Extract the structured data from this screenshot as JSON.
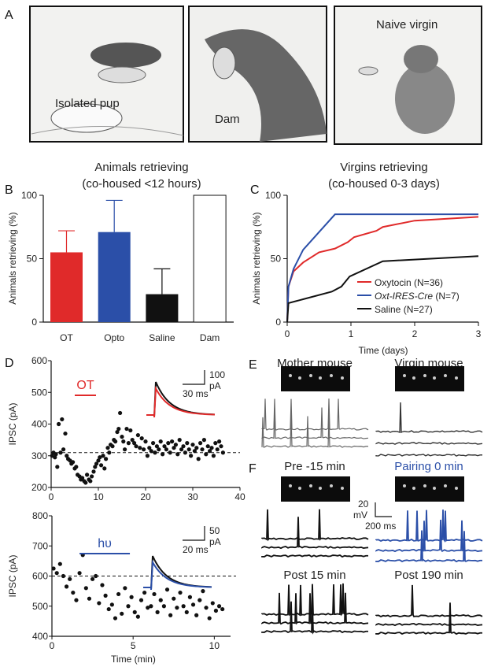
{
  "panels": {
    "A": {
      "label": "A",
      "scenes": [
        "Isolated pup",
        "Dam",
        "Naive virgin"
      ]
    },
    "B": {
      "label": "B",
      "title1": "Animals retrieving",
      "title2": "(co-housed <12 hours)"
    },
    "C": {
      "label": "C",
      "title1": "Virgins retrieving",
      "title2": "(co-housed 0-3 days)"
    },
    "D": {
      "label": "D",
      "top_marker": "OT",
      "top_scale_y": "100",
      "top_scale_y_unit": "pA",
      "top_scale_x": "30 ms",
      "bottom_marker": "hυ",
      "bottom_scale_y": "50",
      "bottom_scale_y_unit": "pA",
      "bottom_scale_x": "20 ms"
    },
    "E": {
      "label": "E",
      "left_title": "Mother mouse",
      "right_title": "Virgin mouse"
    },
    "F": {
      "label": "F",
      "titles": [
        "Pre -15 min",
        "Pairing 0 min",
        "Post 15 min",
        "Post 190 min"
      ],
      "scale_y": "20",
      "scale_y_unit": "mV",
      "scale_x": "200 ms"
    }
  },
  "colors": {
    "red": "#e02a2a",
    "blue": "#2b4fa8",
    "black": "#111111"
  },
  "chart_data": [
    {
      "type": "bar",
      "title": "Animals retrieving (co-housed <12 hours)",
      "ylabel": "Animals retrieving (%)",
      "categories": [
        "OT",
        "Opto",
        "Saline",
        "Dam"
      ],
      "values": [
        55,
        71,
        22,
        100
      ],
      "errors": [
        72,
        96,
        42,
        null
      ],
      "bar_colors": [
        "#e02a2a",
        "#2b4fa8",
        "#111111",
        "#ffffff"
      ],
      "ylim": [
        0,
        100
      ],
      "yticks": [
        "0",
        "50",
        "100"
      ]
    },
    {
      "type": "line",
      "title": "Virgins retrieving (co-housed 0-3 days)",
      "xlabel": "Time (days)",
      "ylabel": "Animals retrieving (%)",
      "xlim": [
        0,
        3
      ],
      "ylim": [
        0,
        100
      ],
      "xticks": [
        "0",
        "1",
        "2",
        "3"
      ],
      "yticks": [
        "0",
        "50",
        "100"
      ],
      "legend": "bottom-right",
      "series": [
        {
          "name": "Oxytocin",
          "name_italic": false,
          "n": "(N=36)",
          "color": "#e02a2a",
          "points": [
            [
              0,
              0
            ],
            [
              0.02,
              28
            ],
            [
              0.1,
              40
            ],
            [
              0.25,
              47
            ],
            [
              0.5,
              55
            ],
            [
              0.75,
              58
            ],
            [
              0.95,
              63
            ],
            [
              1.05,
              67
            ],
            [
              1.4,
              72
            ],
            [
              1.5,
              75
            ],
            [
              2,
              80
            ],
            [
              3,
              83
            ]
          ]
        },
        {
          "name": "Oxt-IRES-Cre",
          "name_italic": true,
          "n": "(N=7)",
          "color": "#2b4fa8",
          "points": [
            [
              0,
              0
            ],
            [
              0.02,
              28
            ],
            [
              0.1,
              42
            ],
            [
              0.25,
              57
            ],
            [
              0.75,
              85
            ],
            [
              3,
              85
            ]
          ]
        },
        {
          "name": "Saline",
          "name_italic": false,
          "n": "(N=27)",
          "color": "#111111",
          "points": [
            [
              0,
              0
            ],
            [
              0.02,
              15
            ],
            [
              0.25,
              18
            ],
            [
              0.7,
              24
            ],
            [
              0.85,
              28
            ],
            [
              0.98,
              36
            ],
            [
              1.5,
              48
            ],
            [
              3,
              52
            ]
          ]
        }
      ]
    },
    {
      "type": "scatter",
      "ylabel": "IPSC (pA)",
      "xlim": [
        0,
        40
      ],
      "ylim": [
        200,
        600
      ],
      "baseline": 310,
      "xticks": [
        "0",
        "10",
        "20",
        "30",
        "40"
      ],
      "yticks": [
        "200",
        "300",
        "400",
        "500",
        "600"
      ],
      "marker_interval": [
        5,
        9.5
      ],
      "points": [
        [
          0.2,
          300
        ],
        [
          0.5,
          310
        ],
        [
          0.8,
          295
        ],
        [
          1,
          305
        ],
        [
          1.3,
          265
        ],
        [
          1.6,
          400
        ],
        [
          2,
          310
        ],
        [
          2.3,
          415
        ],
        [
          2.6,
          320
        ],
        [
          3,
          370
        ],
        [
          3.3,
          300
        ],
        [
          3.6,
          290
        ],
        [
          4,
          285
        ],
        [
          4.3,
          275
        ],
        [
          4.6,
          280
        ],
        [
          5,
          260
        ],
        [
          5.3,
          265
        ],
        [
          5.6,
          240
        ],
        [
          6,
          235
        ],
        [
          6.3,
          225
        ],
        [
          6.6,
          230
        ],
        [
          7,
          220
        ],
        [
          7.3,
          215
        ],
        [
          7.6,
          240
        ],
        [
          8,
          225
        ],
        [
          8.3,
          220
        ],
        [
          8.6,
          235
        ],
        [
          9,
          250
        ],
        [
          9.3,
          265
        ],
        [
          9.6,
          275
        ],
        [
          10,
          285
        ],
        [
          10.3,
          295
        ],
        [
          10.6,
          270
        ],
        [
          11,
          300
        ],
        [
          11.3,
          260
        ],
        [
          11.6,
          290
        ],
        [
          12,
          325
        ],
        [
          12.3,
          310
        ],
        [
          12.6,
          335
        ],
        [
          13,
          330
        ],
        [
          13.3,
          350
        ],
        [
          13.6,
          345
        ],
        [
          14,
          375
        ],
        [
          14.3,
          385
        ],
        [
          14.6,
          435
        ],
        [
          15,
          360
        ],
        [
          15.3,
          345
        ],
        [
          15.6,
          320
        ],
        [
          16,
          385
        ],
        [
          16.4,
          340
        ],
        [
          16.8,
          380
        ],
        [
          17.2,
          350
        ],
        [
          17.6,
          340
        ],
        [
          18,
          330
        ],
        [
          18.4,
          365
        ],
        [
          18.8,
          325
        ],
        [
          19.2,
          355
        ],
        [
          19.6,
          320
        ],
        [
          20,
          345
        ],
        [
          20.4,
          300
        ],
        [
          20.8,
          325
        ],
        [
          21.2,
          315
        ],
        [
          21.6,
          340
        ],
        [
          22,
          310
        ],
        [
          22.4,
          330
        ],
        [
          22.8,
          320
        ],
        [
          23.2,
          345
        ],
        [
          23.6,
          305
        ],
        [
          24,
          330
        ],
        [
          24.4,
          320
        ],
        [
          24.8,
          340
        ],
        [
          25.2,
          310
        ],
        [
          25.6,
          345
        ],
        [
          26,
          325
        ],
        [
          26.4,
          335
        ],
        [
          26.8,
          305
        ],
        [
          27.2,
          350
        ],
        [
          27.6,
          320
        ],
        [
          28,
          330
        ],
        [
          28.4,
          310
        ],
        [
          28.8,
          340
        ],
        [
          29.2,
          320
        ],
        [
          29.6,
          300
        ],
        [
          30,
          335
        ],
        [
          30.4,
          315
        ],
        [
          30.8,
          325
        ],
        [
          31.2,
          290
        ],
        [
          31.6,
          340
        ],
        [
          32,
          320
        ],
        [
          32.4,
          350
        ],
        [
          32.8,
          305
        ],
        [
          33.2,
          330
        ],
        [
          33.6,
          315
        ],
        [
          34,
          325
        ],
        [
          34.4,
          300
        ],
        [
          34.8,
          340
        ],
        [
          35.2,
          320
        ],
        [
          35.6,
          345
        ],
        [
          36,
          330
        ],
        [
          36.4,
          310
        ]
      ]
    },
    {
      "type": "scatter",
      "xlabel": "Time (min)",
      "ylabel": "IPSC (pA)",
      "xlim": [
        0,
        11
      ],
      "ylim": [
        400,
        800
      ],
      "baseline": 600,
      "xticks": [
        "0",
        "5",
        "10"
      ],
      "yticks": [
        "400",
        "500",
        "600",
        "700",
        "800"
      ],
      "marker_interval": [
        1.7,
        4.8
      ],
      "points": [
        [
          0.1,
          625
        ],
        [
          0.3,
          610
        ],
        [
          0.5,
          640
        ],
        [
          0.7,
          600
        ],
        [
          0.9,
          565
        ],
        [
          1.1,
          590
        ],
        [
          1.3,
          545
        ],
        [
          1.5,
          520
        ],
        [
          1.7,
          610
        ],
        [
          1.9,
          670
        ],
        [
          2.1,
          560
        ],
        [
          2.3,
          525
        ],
        [
          2.5,
          590
        ],
        [
          2.7,
          600
        ],
        [
          2.9,
          510
        ],
        [
          3.1,
          570
        ],
        [
          3.3,
          535
        ],
        [
          3.5,
          490
        ],
        [
          3.7,
          505
        ],
        [
          3.9,
          460
        ],
        [
          4.1,
          540
        ],
        [
          4.3,
          475
        ],
        [
          4.5,
          560
        ],
        [
          4.7,
          500
        ],
        [
          4.9,
          530
        ],
        [
          5.1,
          480
        ],
        [
          5.3,
          465
        ],
        [
          5.5,
          520
        ],
        [
          5.7,
          545
        ],
        [
          5.9,
          495
        ],
        [
          6.1,
          500
        ],
        [
          6.3,
          540
        ],
        [
          6.5,
          480
        ],
        [
          6.7,
          520
        ],
        [
          6.9,
          500
        ],
        [
          7.1,
          555
        ],
        [
          7.3,
          470
        ],
        [
          7.5,
          525
        ],
        [
          7.7,
          495
        ],
        [
          7.9,
          545
        ],
        [
          8.1,
          500
        ],
        [
          8.3,
          480
        ],
        [
          8.5,
          530
        ],
        [
          8.7,
          505
        ],
        [
          8.9,
          470
        ],
        [
          9.1,
          520
        ],
        [
          9.3,
          550
        ],
        [
          9.5,
          495
        ],
        [
          9.7,
          460
        ],
        [
          9.9,
          510
        ],
        [
          10.1,
          485
        ],
        [
          10.3,
          500
        ],
        [
          10.5,
          490
        ]
      ]
    }
  ]
}
